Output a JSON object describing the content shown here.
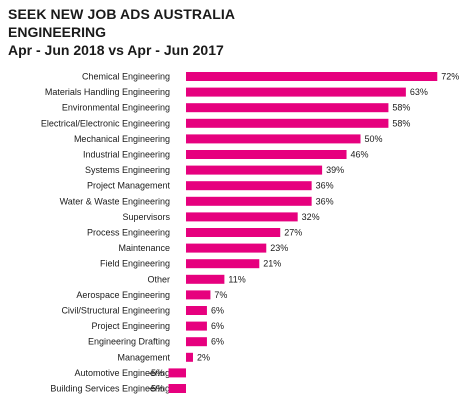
{
  "header": {
    "title": "SEEK NEW JOB ADS AUSTRALIA",
    "subtitle": "ENGINEERING",
    "period": "Apr - Jun 2018 vs Apr - Jun 2017"
  },
  "colors": {
    "bar": "#e6007e",
    "text": "#1a1a1a"
  },
  "chart_data": {
    "type": "bar",
    "orientation": "horizontal",
    "title": "SEEK NEW JOB ADS AUSTRALIA",
    "subtitle": "ENGINEERING",
    "categories": [
      "Chemical Engineering",
      "Materials Handling Engineering",
      "Environmental Engineering",
      "Electrical/Electronic Engineering",
      "Mechanical Engineering",
      "Industrial Engineering",
      "Systems Engineering",
      "Project Management",
      "Water & Waste Engineering",
      "Supervisors",
      "Process Engineering",
      "Maintenance",
      "Field Engineering",
      "Other",
      "Aerospace Engineering",
      "Civil/Structural Engineering",
      "Project Engineering",
      "Engineering Drafting",
      "Management",
      "Automotive Engineering",
      "Building Services Engineering"
    ],
    "values": [
      72,
      63,
      58,
      58,
      50,
      46,
      39,
      36,
      36,
      32,
      27,
      23,
      21,
      11,
      7,
      6,
      6,
      6,
      2,
      -5,
      -5
    ],
    "labels": [
      "72%",
      "63%",
      "58%",
      "58%",
      "50%",
      "46%",
      "39%",
      "36%",
      "36%",
      "32%",
      "27%",
      "23%",
      "21%",
      "11%",
      "7%",
      "6%",
      "6%",
      "6%",
      "2%",
      "-5%",
      "-5%"
    ],
    "xlim": [
      -5,
      72
    ],
    "grid": false,
    "legend": "none"
  }
}
